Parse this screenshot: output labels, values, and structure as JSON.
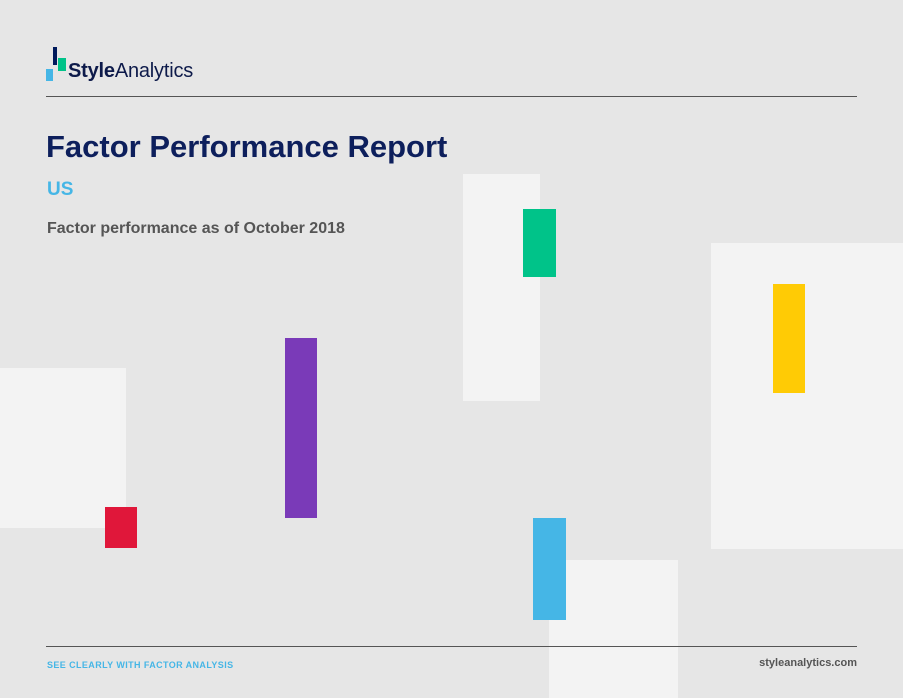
{
  "brand": {
    "logo_prefix": "Style",
    "logo_suffix": "Analytics"
  },
  "report": {
    "title": "Factor Performance Report",
    "region": "US",
    "subtitle": "Factor performance as of October 2018"
  },
  "footer": {
    "tagline": "SEE CLEARLY WITH FACTOR ANALYSIS",
    "website": "styleanalytics.com"
  },
  "colors": {
    "background": "#e6e6e6",
    "panel": "#f3f3f3",
    "navy": "#0d1f5c",
    "accent_blue": "#45b6e6",
    "red": "#e0173a",
    "purple": "#7a3ab8",
    "green": "#00c389",
    "yellow": "#ffcb05"
  }
}
